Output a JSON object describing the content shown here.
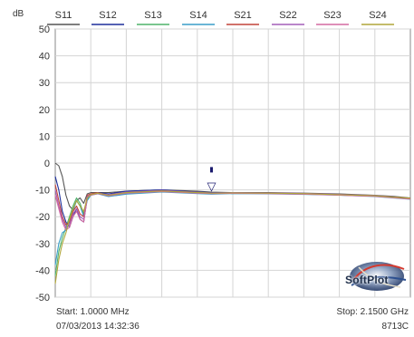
{
  "chart_data": {
    "type": "line",
    "ylabel": "dB",
    "ylim": [
      -50,
      50
    ],
    "yticks": [
      50,
      40,
      30,
      20,
      10,
      0,
      -10,
      -20,
      -30,
      -40,
      -50
    ],
    "x_start": "Start: 1.0000 MHz",
    "x_stop": "Stop: 2.1500 GHz",
    "grid": true,
    "legend_position": "top",
    "series": [
      {
        "name": "S11",
        "color": "#555555",
        "trace": "top_lead"
      },
      {
        "name": "S12",
        "color": "#1d2f9c",
        "trace": "mid_a"
      },
      {
        "name": "S13",
        "color": "#4fb36a",
        "trace": "low_b"
      },
      {
        "name": "S14",
        "color": "#3a9ec8",
        "trace": "low_a"
      },
      {
        "name": "S21",
        "color": "#c2433a",
        "trace": "mid_b"
      },
      {
        "name": "S22",
        "color": "#a35fb8",
        "trace": "mid_c"
      },
      {
        "name": "S23",
        "color": "#d46aa0",
        "trace": "mid_d"
      },
      {
        "name": "S24",
        "color": "#b0a63a",
        "trace": "low_c"
      }
    ],
    "x_norm": [
      0.0,
      0.01,
      0.02,
      0.03,
      0.04,
      0.05,
      0.06,
      0.07,
      0.08,
      0.09,
      0.1,
      0.12,
      0.15,
      0.2,
      0.3,
      0.4,
      0.44,
      0.5,
      0.6,
      0.7,
      0.8,
      0.9,
      0.95,
      1.0
    ],
    "traces": {
      "top_lead": [
        0,
        -1,
        -5,
        -12,
        -16,
        -17.5,
        -14,
        -13,
        -15,
        -11.5,
        -11,
        -11,
        -11,
        -10.5,
        -10,
        -10.5,
        -10.8,
        -11,
        -11,
        -11.2,
        -11.5,
        -12,
        -12.4,
        -13
      ],
      "mid_a": [
        -5,
        -10,
        -18,
        -22,
        -24,
        -20,
        -17,
        -21,
        -22,
        -13,
        -12,
        -11,
        -11.5,
        -10.5,
        -10,
        -10.8,
        -11,
        -11,
        -11.2,
        -11.4,
        -11.8,
        -12.2,
        -12.8,
        -13.2
      ],
      "mid_b": [
        -8,
        -14,
        -20,
        -23,
        -22,
        -18,
        -16,
        -19,
        -20,
        -12,
        -11.5,
        -11,
        -12,
        -11,
        -10.3,
        -11,
        -11.2,
        -11.2,
        -11.3,
        -11.5,
        -11.9,
        -12.3,
        -12.7,
        -13.1
      ],
      "mid_c": [
        -10,
        -16,
        -21,
        -24,
        -23,
        -19,
        -17,
        -20,
        -21,
        -12.5,
        -11.8,
        -11.2,
        -11.8,
        -10.8,
        -10.2,
        -10.9,
        -11.1,
        -11,
        -11.1,
        -11.3,
        -11.7,
        -12.1,
        -12.6,
        -13.3
      ],
      "mid_d": [
        -12,
        -17,
        -22,
        -25,
        -24,
        -20,
        -18,
        -21,
        -22,
        -13,
        -12,
        -11.4,
        -12.2,
        -11.2,
        -10.6,
        -11.2,
        -11.4,
        -11.3,
        -11.4,
        -11.6,
        -12,
        -12.4,
        -12.9,
        -13.4
      ],
      "low_a": [
        -38,
        -30,
        -26,
        -25,
        -22,
        -18,
        -14,
        -16,
        -20,
        -14,
        -12,
        -11.5,
        -12.5,
        -11.6,
        -10.8,
        -11.4,
        -11.6,
        -11.4,
        -11.5,
        -11.7,
        -12,
        -12.5,
        -13,
        -13.5
      ],
      "low_b": [
        -42,
        -33,
        -28,
        -24,
        -20,
        -16,
        -13,
        -15,
        -19,
        -13.5,
        -12,
        -11.3,
        -12.3,
        -11.3,
        -10.5,
        -11.1,
        -11.3,
        -11.2,
        -11.3,
        -11.5,
        -11.9,
        -12.3,
        -12.8,
        -13.2
      ],
      "low_c": [
        -45,
        -36,
        -30,
        -26,
        -21,
        -17,
        -14,
        -16,
        -18,
        -13,
        -11.8,
        -11.2,
        -12,
        -11,
        -10.4,
        -11,
        -11.2,
        -11.1,
        -11.2,
        -11.4,
        -11.8,
        -12.2,
        -12.7,
        -13.1
      ]
    },
    "marker": {
      "x_norm": 0.44,
      "y": -9.5,
      "text": "▽"
    },
    "marker_dot": {
      "x_norm": 0.44,
      "y": -2.5
    }
  },
  "footer": {
    "start": "Start: 1.0000 MHz",
    "stop": "Stop: 2.1500 GHz",
    "timestamp": "07/03/2013 14:32:36",
    "model": "8713C"
  },
  "logo": {
    "text": "SoftPlot"
  }
}
